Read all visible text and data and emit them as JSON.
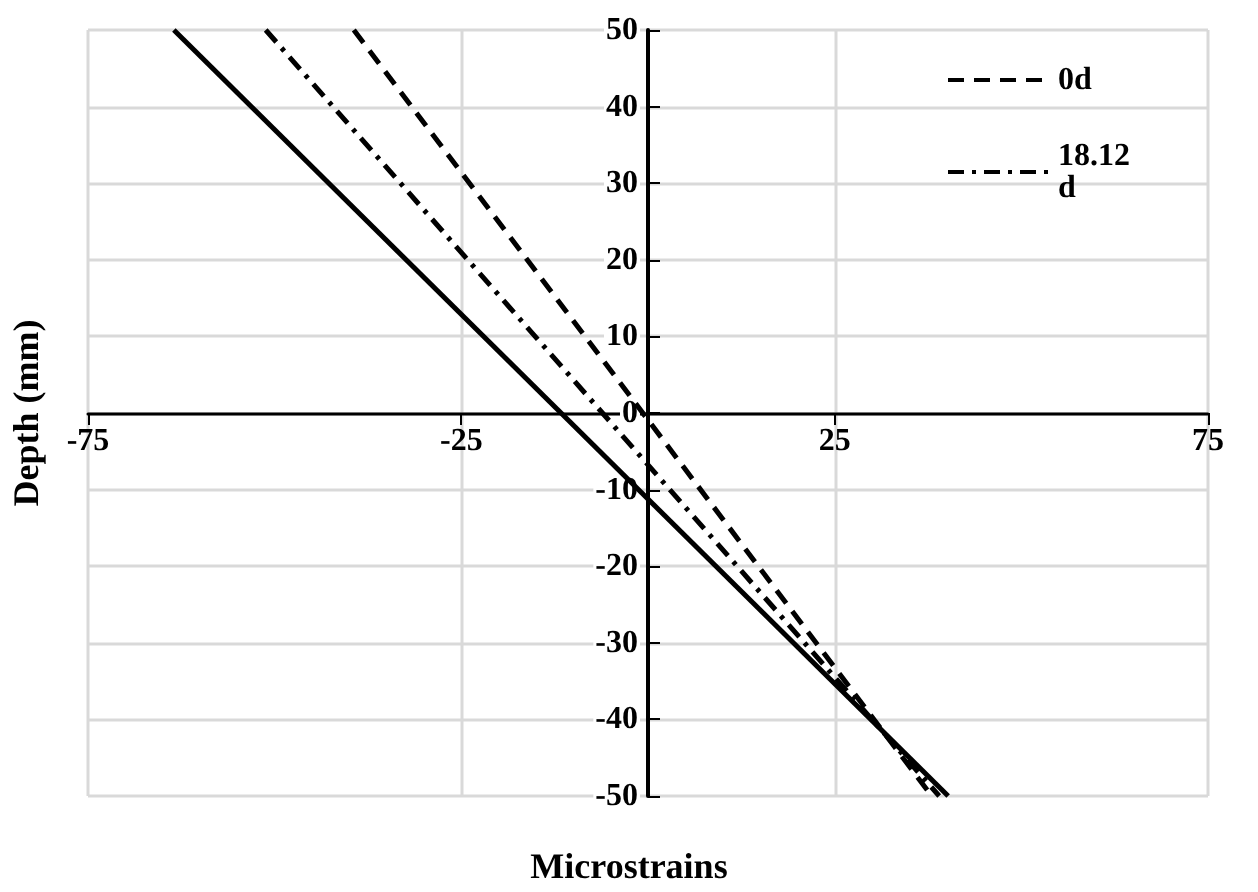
{
  "chart_data": {
    "type": "line",
    "xlabel": "Microstrains",
    "ylabel": "Depth (mm)",
    "xlim": [
      -75,
      75
    ],
    "xticks": [
      -75,
      -25,
      25,
      75
    ],
    "ylim": [
      -50,
      50
    ],
    "yticks": [
      -50,
      -40,
      -30,
      -20,
      -10,
      0,
      10,
      20,
      30,
      40,
      50
    ],
    "grid": true,
    "legend": "top right",
    "marker": "none",
    "series": [
      {
        "name": "0d",
        "color": "#000000",
        "line_style": "dashed",
        "x": [
          -39.4,
          38
        ],
        "values": [
          50,
          -50
        ]
      },
      {
        "name": "18.12 d",
        "color": "#000000",
        "line_style": "dashdot",
        "x": [
          -51.2,
          39
        ],
        "values": [
          50,
          -50
        ]
      },
      {
        "color": "#000000",
        "line_style": "solid",
        "x": [
          -63.5,
          40.2
        ],
        "values": [
          50,
          -50
        ]
      }
    ]
  }
}
